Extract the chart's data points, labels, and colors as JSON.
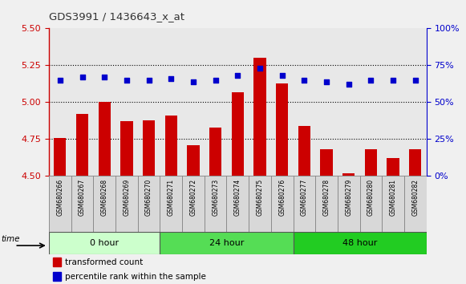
{
  "title": "GDS3991 / 1436643_x_at",
  "categories": [
    "GSM680266",
    "GSM680267",
    "GSM680268",
    "GSM680269",
    "GSM680270",
    "GSM680271",
    "GSM680272",
    "GSM680273",
    "GSM680274",
    "GSM680275",
    "GSM680276",
    "GSM680277",
    "GSM680278",
    "GSM680279",
    "GSM680280",
    "GSM680281",
    "GSM680282"
  ],
  "red_values": [
    4.76,
    4.92,
    5.0,
    4.87,
    4.88,
    4.91,
    4.71,
    4.83,
    5.07,
    5.3,
    5.13,
    4.84,
    4.68,
    4.52,
    4.68,
    4.62,
    4.68
  ],
  "blue_values": [
    65,
    67,
    67,
    65,
    65,
    66,
    64,
    65,
    68,
    73,
    68,
    65,
    64,
    62,
    65,
    65,
    65
  ],
  "ylim_left": [
    4.5,
    5.5
  ],
  "ylim_right": [
    0,
    100
  ],
  "yticks_left": [
    4.5,
    4.75,
    5.0,
    5.25,
    5.5
  ],
  "yticks_right": [
    0,
    25,
    50,
    75,
    100
  ],
  "bar_color": "#cc0000",
  "dot_color": "#0000cc",
  "bar_bottom": 4.5,
  "groups": [
    {
      "label": "0 hour",
      "start": 0,
      "end": 5,
      "color": "#ccffcc"
    },
    {
      "label": "24 hour",
      "start": 5,
      "end": 11,
      "color": "#55dd55"
    },
    {
      "label": "48 hour",
      "start": 11,
      "end": 17,
      "color": "#22cc22"
    }
  ],
  "time_label": "time",
  "legend_red": "transformed count",
  "legend_blue": "percentile rank within the sample",
  "plot_bg": "#ffffff",
  "left_axis_color": "#cc0000",
  "right_axis_color": "#0000cc",
  "col_bg": "#dddddd"
}
